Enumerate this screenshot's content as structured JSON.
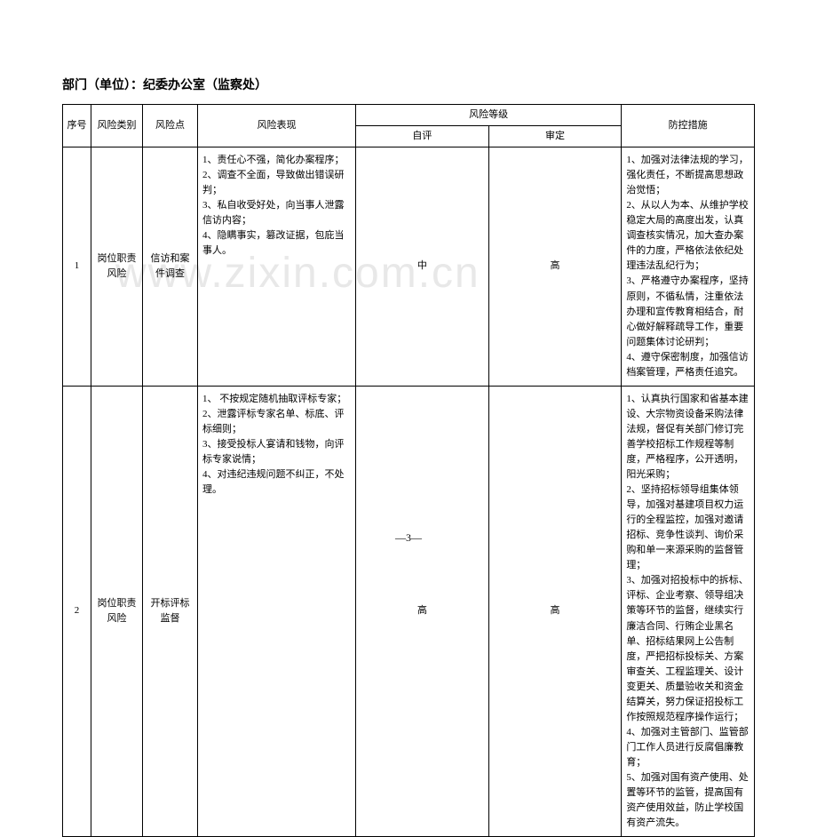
{
  "title": "部门（单位）：纪委办公室（监察处）",
  "table": {
    "headers": {
      "seq": "序号",
      "category": "风险类别",
      "point": "风险点",
      "performance": "风险表现",
      "level": "风险等级",
      "self": "自评",
      "review": "审定",
      "measure": "防控措施"
    },
    "rows": [
      {
        "seq": "1",
        "category": "岗位职责风险",
        "point": "信访和案件调查",
        "performance": "1、责任心不强，简化办案程序；\n2、调查不全面，导致做出错误研判；\n3、私自收受好处，向当事人泄露信访内容；\n4、隐瞒事实，篡改证据，包庇当事人。",
        "self": "中",
        "review": "高",
        "measure": "1、加强对法律法规的学习，强化责任，不断提高思想政治觉悟；\n2、从以人为本、从维护学校稳定大局的高度出发，认真调查核实情况，加大查办案件的力度，严格依法依纪处理违法乱纪行为；\n3、严格遵守办案程序，坚持原则，不循私情，注重依法办理和宣传教育相结合，耐心做好解释疏导工作，重要问题集体讨论研判；\n4、遵守保密制度，加强信访档案管理，严格责任追究。"
      },
      {
        "seq": "2",
        "category": "岗位职责风险",
        "point": "开标评标监督",
        "performance": "1、 不按规定随机抽取评标专家；\n2、泄露评标专家名单、标底、评标细则；\n3、接受投标人宴请和钱物，向评标专家说情；\n4、对违纪违规问题不纠正，不处理。",
        "self": "高",
        "review": "高",
        "measure": "1、认真执行国家和省基本建设、大宗物资设备采购法律法规，督促有关部门修订完善学校招标工作规程等制度，严格程序，公开透明，阳光采购；\n2、坚持招标领导组集体领导，加强对基建项目权力运行的全程监控，加强对邀请招标、竞争性谈判、询价采购和单一来源采购的监督管理；\n3、加强对招投标中的拆标、评标、企业考察、领导组决策等环节的监督，继续实行廉洁合同、行贿企业黑名单、招标结果网上公告制度，严把招标投标关、方案审查关、工程监理关、设计变更关、质量验收关和资金结算关，努力保证招投标工作按照规范程序操作运行；\n4、加强对主管部门、监管部门工作人员进行反腐倡廉教育；\n5、加强对国有资产使用、处置等环节的监管，提高国有资产使用效益，防止学校国有资产流失。"
      }
    ]
  },
  "watermark": "www.zixin.com.cn",
  "pageNumber": "—3—"
}
